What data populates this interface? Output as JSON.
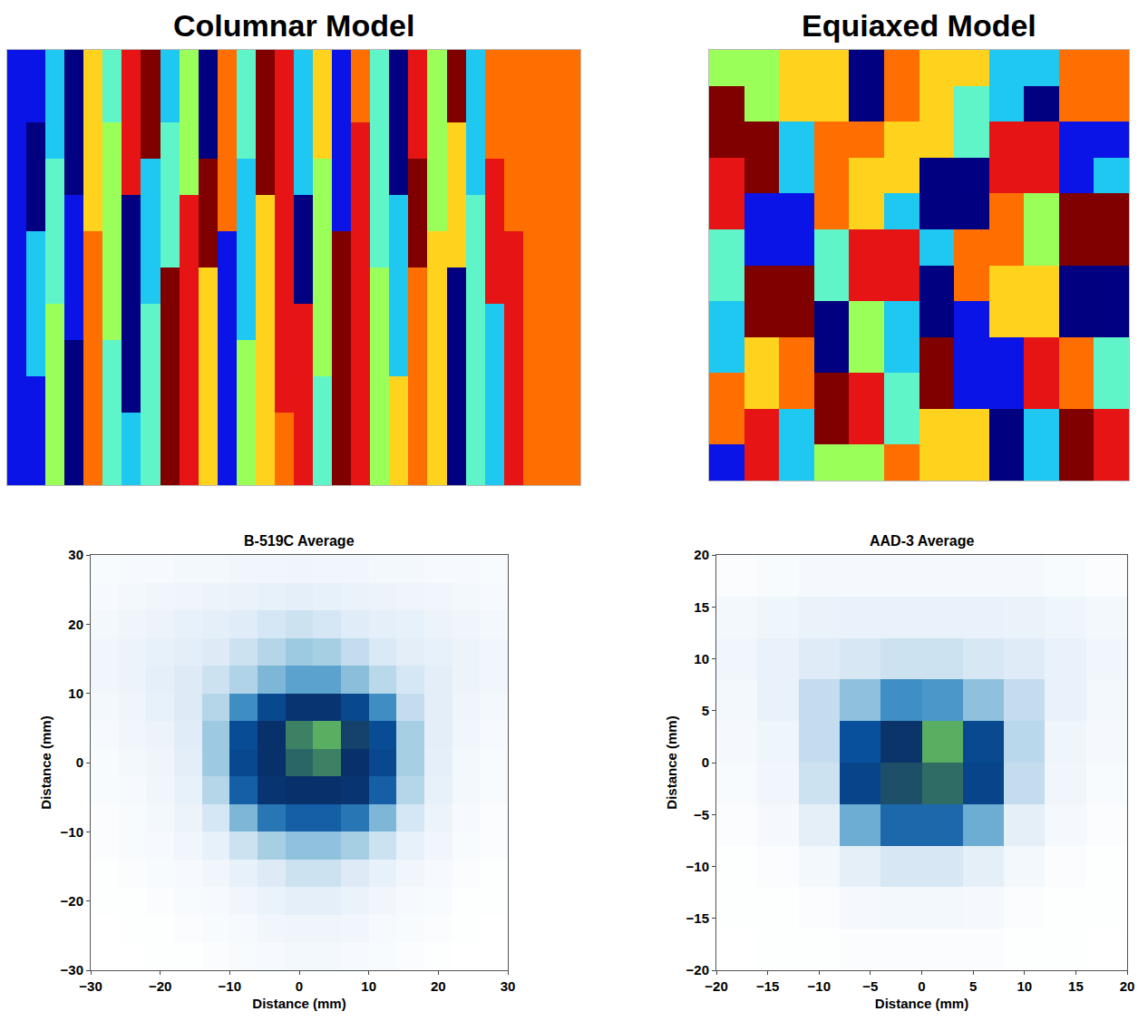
{
  "chart_data": [
    {
      "type": "heatmap",
      "title": "Columnar Model",
      "tick_labels": false,
      "colors": [
        "#0a14e6",
        "#000080",
        "#1ec8f0",
        "#5ff5c8",
        "#9bff5a",
        "#ffd21e",
        "#ff6e00",
        "#e61414",
        "#800000"
      ],
      "cells": [
        [
          0,
          0,
          2,
          1,
          5,
          3,
          7,
          8,
          2,
          4,
          1,
          6,
          3,
          8,
          7,
          2,
          5,
          0,
          6,
          3,
          1,
          7,
          4,
          8,
          2,
          6,
          6,
          6,
          6,
          6
        ],
        [
          0,
          0,
          2,
          1,
          5,
          3,
          7,
          8,
          2,
          4,
          1,
          6,
          3,
          8,
          7,
          2,
          5,
          0,
          6,
          3,
          1,
          7,
          4,
          8,
          2,
          6,
          6,
          6,
          6,
          6
        ],
        [
          0,
          1,
          2,
          1,
          5,
          4,
          7,
          8,
          3,
          4,
          1,
          6,
          3,
          8,
          7,
          2,
          5,
          0,
          7,
          3,
          1,
          7,
          4,
          5,
          2,
          6,
          6,
          6,
          6,
          6
        ],
        [
          0,
          1,
          3,
          1,
          5,
          4,
          7,
          2,
          3,
          4,
          8,
          6,
          2,
          8,
          7,
          2,
          4,
          0,
          7,
          3,
          1,
          8,
          4,
          5,
          2,
          7,
          6,
          6,
          6,
          6
        ],
        [
          0,
          1,
          3,
          0,
          5,
          4,
          1,
          2,
          3,
          7,
          8,
          6,
          2,
          5,
          7,
          1,
          4,
          0,
          7,
          3,
          2,
          8,
          4,
          5,
          3,
          7,
          6,
          6,
          6,
          6
        ],
        [
          0,
          2,
          3,
          0,
          6,
          4,
          1,
          2,
          3,
          7,
          8,
          0,
          2,
          5,
          7,
          1,
          4,
          8,
          7,
          3,
          2,
          8,
          5,
          5,
          3,
          7,
          7,
          6,
          6,
          6
        ],
        [
          0,
          2,
          3,
          0,
          6,
          4,
          1,
          2,
          8,
          7,
          5,
          0,
          2,
          5,
          7,
          1,
          4,
          8,
          7,
          4,
          2,
          6,
          5,
          1,
          3,
          7,
          7,
          6,
          6,
          6
        ],
        [
          0,
          2,
          4,
          0,
          6,
          4,
          1,
          3,
          8,
          7,
          5,
          0,
          2,
          5,
          7,
          7,
          4,
          8,
          7,
          4,
          2,
          6,
          5,
          1,
          3,
          2,
          7,
          6,
          6,
          6
        ],
        [
          0,
          2,
          4,
          1,
          6,
          3,
          1,
          3,
          8,
          7,
          5,
          0,
          4,
          5,
          7,
          7,
          4,
          8,
          7,
          4,
          2,
          6,
          5,
          1,
          3,
          2,
          7,
          6,
          6,
          6
        ],
        [
          0,
          0,
          4,
          1,
          6,
          3,
          1,
          3,
          8,
          7,
          5,
          0,
          4,
          5,
          7,
          7,
          3,
          8,
          7,
          4,
          5,
          6,
          5,
          1,
          3,
          2,
          7,
          6,
          6,
          6
        ],
        [
          0,
          0,
          4,
          1,
          6,
          3,
          2,
          3,
          8,
          7,
          5,
          0,
          4,
          5,
          6,
          7,
          3,
          8,
          7,
          4,
          5,
          6,
          5,
          1,
          3,
          2,
          7,
          6,
          6,
          6
        ],
        [
          0,
          0,
          4,
          1,
          6,
          3,
          2,
          3,
          8,
          7,
          5,
          0,
          4,
          5,
          6,
          7,
          3,
          8,
          7,
          4,
          5,
          6,
          5,
          1,
          3,
          2,
          7,
          6,
          6,
          6
        ]
      ]
    },
    {
      "type": "heatmap",
      "title": "Equiaxed Model",
      "tick_labels": false,
      "colors": [
        "#0a14e6",
        "#000080",
        "#1ec8f0",
        "#5ff5c8",
        "#9bff5a",
        "#ffd21e",
        "#ff6e00",
        "#e61414",
        "#800000"
      ],
      "cells": [
        [
          4,
          4,
          5,
          5,
          1,
          6,
          5,
          5,
          2,
          2,
          6,
          6
        ],
        [
          8,
          4,
          5,
          5,
          1,
          6,
          5,
          3,
          2,
          1,
          6,
          6
        ],
        [
          8,
          8,
          2,
          6,
          6,
          5,
          5,
          3,
          7,
          7,
          0,
          0
        ],
        [
          7,
          8,
          2,
          6,
          5,
          5,
          1,
          1,
          7,
          7,
          0,
          2
        ],
        [
          7,
          0,
          0,
          6,
          5,
          2,
          1,
          1,
          6,
          4,
          8,
          8
        ],
        [
          3,
          0,
          0,
          3,
          7,
          7,
          2,
          6,
          6,
          4,
          8,
          8
        ],
        [
          3,
          8,
          8,
          3,
          7,
          7,
          1,
          6,
          5,
          5,
          1,
          1
        ],
        [
          2,
          8,
          8,
          1,
          4,
          2,
          1,
          0,
          5,
          5,
          1,
          1
        ],
        [
          2,
          5,
          6,
          1,
          4,
          2,
          8,
          0,
          0,
          7,
          6,
          3
        ],
        [
          6,
          5,
          6,
          8,
          7,
          3,
          8,
          0,
          0,
          7,
          6,
          3
        ],
        [
          6,
          7,
          2,
          8,
          7,
          3,
          5,
          5,
          1,
          2,
          8,
          7
        ],
        [
          0,
          7,
          2,
          4,
          4,
          6,
          5,
          5,
          1,
          2,
          8,
          7
        ]
      ]
    },
    {
      "type": "heatmap",
      "title": "B-519C Average",
      "xlabel": "Distance (mm)",
      "ylabel": "Distance (mm)",
      "xlim": [
        -30,
        30
      ],
      "ylim": [
        -30,
        30
      ],
      "xticks": [
        {
          "value": -30,
          "label": "−30"
        },
        {
          "value": -20,
          "label": "−20"
        },
        {
          "value": -10,
          "label": "−10"
        },
        0,
        10,
        20,
        30
      ],
      "yticks": [
        {
          "value": -30,
          "label": "−30"
        },
        {
          "value": -20,
          "label": "−20"
        },
        {
          "value": -10,
          "label": "−10"
        },
        0,
        10,
        20,
        30
      ],
      "colors": [
        "#ffffff",
        "#deebf7",
        "#9ecae1",
        "#4292c6",
        "#08519c",
        "#08306b",
        "#08306b",
        "#5aae61"
      ],
      "x": [
        -28,
        -24,
        -20,
        -16,
        -12,
        -8,
        -4,
        0,
        4,
        8,
        12,
        16,
        20,
        24,
        28
      ],
      "y": [
        -28,
        -24,
        -20,
        -16,
        -12,
        -8,
        -4,
        0,
        4,
        8,
        12,
        16,
        20,
        24,
        28
      ],
      "cells": [
        [
          0.02,
          0.02,
          0.03,
          0.03,
          0.04,
          0.05,
          0.06,
          0.07,
          0.07,
          0.06,
          0.05,
          0.04,
          0.03,
          0.02,
          0.02
        ],
        [
          0.02,
          0.03,
          0.03,
          0.04,
          0.05,
          0.06,
          0.08,
          0.09,
          0.09,
          0.08,
          0.06,
          0.05,
          0.04,
          0.03,
          0.02
        ],
        [
          0.03,
          0.03,
          0.04,
          0.05,
          0.06,
          0.08,
          0.11,
          0.13,
          0.13,
          0.11,
          0.08,
          0.06,
          0.05,
          0.03,
          0.03
        ],
        [
          0.03,
          0.04,
          0.05,
          0.06,
          0.08,
          0.12,
          0.16,
          0.2,
          0.2,
          0.16,
          0.12,
          0.08,
          0.06,
          0.04,
          0.03
        ],
        [
          0.04,
          0.05,
          0.06,
          0.08,
          0.12,
          0.2,
          0.28,
          0.32,
          0.32,
          0.28,
          0.2,
          0.12,
          0.08,
          0.05,
          0.04
        ],
        [
          0.04,
          0.05,
          0.07,
          0.1,
          0.18,
          0.35,
          0.5,
          0.55,
          0.55,
          0.5,
          0.35,
          0.18,
          0.1,
          0.06,
          0.04
        ],
        [
          0.05,
          0.06,
          0.08,
          0.12,
          0.25,
          0.55,
          0.7,
          0.75,
          0.75,
          0.7,
          0.55,
          0.25,
          0.12,
          0.07,
          0.05
        ],
        [
          0.05,
          0.07,
          0.09,
          0.14,
          0.3,
          0.62,
          0.78,
          0.92,
          0.95,
          0.85,
          0.62,
          0.28,
          0.13,
          0.07,
          0.05
        ],
        [
          0.06,
          0.08,
          0.1,
          0.15,
          0.3,
          0.6,
          0.78,
          0.95,
          1.0,
          0.88,
          0.6,
          0.28,
          0.14,
          0.08,
          0.06
        ],
        [
          0.07,
          0.09,
          0.12,
          0.16,
          0.25,
          0.45,
          0.62,
          0.7,
          0.7,
          0.62,
          0.45,
          0.22,
          0.14,
          0.09,
          0.07
        ],
        [
          0.08,
          0.1,
          0.13,
          0.16,
          0.2,
          0.26,
          0.35,
          0.4,
          0.4,
          0.33,
          0.24,
          0.18,
          0.14,
          0.1,
          0.08
        ],
        [
          0.08,
          0.1,
          0.12,
          0.14,
          0.16,
          0.2,
          0.25,
          0.3,
          0.28,
          0.22,
          0.17,
          0.14,
          0.12,
          0.1,
          0.08
        ],
        [
          0.07,
          0.09,
          0.1,
          0.12,
          0.13,
          0.15,
          0.18,
          0.2,
          0.18,
          0.15,
          0.13,
          0.12,
          0.1,
          0.09,
          0.07
        ],
        [
          0.06,
          0.07,
          0.08,
          0.09,
          0.1,
          0.11,
          0.12,
          0.13,
          0.12,
          0.11,
          0.1,
          0.09,
          0.08,
          0.07,
          0.06
        ],
        [
          0.05,
          0.06,
          0.06,
          0.07,
          0.07,
          0.08,
          0.08,
          0.09,
          0.08,
          0.08,
          0.07,
          0.07,
          0.06,
          0.06,
          0.05
        ]
      ]
    },
    {
      "type": "heatmap",
      "title": "AAD-3 Average",
      "xlabel": "Distance (mm)",
      "ylabel": "Distance (mm)",
      "xlim": [
        -20,
        20
      ],
      "ylim": [
        -20,
        20
      ],
      "xticks": [
        {
          "value": -20,
          "label": "−20"
        },
        {
          "value": -15,
          "label": "−15"
        },
        {
          "value": -10,
          "label": "−10"
        },
        {
          "value": -5,
          "label": "−5"
        },
        0,
        5,
        10,
        15,
        20
      ],
      "yticks": [
        {
          "value": -20,
          "label": "−20"
        },
        {
          "value": -15,
          "label": "−15"
        },
        {
          "value": -10,
          "label": "−10"
        },
        {
          "value": -5,
          "label": "−5"
        },
        0,
        5,
        10,
        15,
        20
      ],
      "colors": [
        "#ffffff",
        "#deebf7",
        "#9ecae1",
        "#4292c6",
        "#08519c",
        "#08306b",
        "#08306b",
        "#5aae61"
      ],
      "x": [
        -18,
        -14,
        -10,
        -6,
        -2,
        2,
        6,
        10,
        14,
        18
      ],
      "y": [
        -18,
        -14,
        -10,
        -6,
        -2,
        2,
        6,
        10,
        14,
        18
      ],
      "cells": [
        [
          0.01,
          0.02,
          0.02,
          0.03,
          0.03,
          0.03,
          0.03,
          0.02,
          0.02,
          0.01
        ],
        [
          0.02,
          0.02,
          0.03,
          0.05,
          0.06,
          0.06,
          0.05,
          0.03,
          0.02,
          0.02
        ],
        [
          0.02,
          0.03,
          0.06,
          0.12,
          0.16,
          0.16,
          0.12,
          0.06,
          0.03,
          0.02
        ],
        [
          0.03,
          0.05,
          0.12,
          0.35,
          0.5,
          0.5,
          0.35,
          0.12,
          0.05,
          0.03
        ],
        [
          0.04,
          0.07,
          0.18,
          0.6,
          0.85,
          0.88,
          0.6,
          0.2,
          0.07,
          0.04
        ],
        [
          0.05,
          0.08,
          0.2,
          0.55,
          0.82,
          0.95,
          0.58,
          0.22,
          0.08,
          0.05
        ],
        [
          0.06,
          0.1,
          0.2,
          0.3,
          0.42,
          0.4,
          0.3,
          0.2,
          0.1,
          0.06
        ],
        [
          0.07,
          0.1,
          0.14,
          0.16,
          0.18,
          0.18,
          0.16,
          0.14,
          0.1,
          0.07
        ],
        [
          0.06,
          0.08,
          0.09,
          0.1,
          0.1,
          0.1,
          0.1,
          0.09,
          0.08,
          0.06
        ],
        [
          0.03,
          0.04,
          0.05,
          0.05,
          0.05,
          0.05,
          0.05,
          0.05,
          0.04,
          0.03
        ]
      ]
    }
  ]
}
